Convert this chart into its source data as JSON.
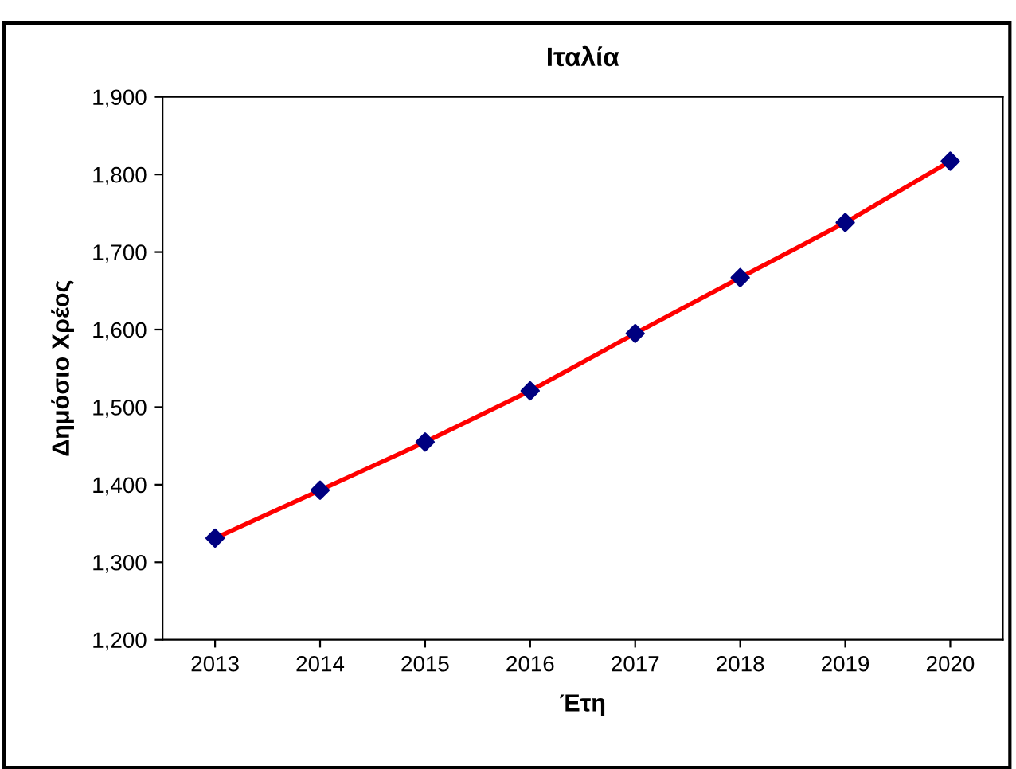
{
  "chart_data": {
    "type": "line",
    "title": "Ιταλία",
    "xlabel": "Έτη",
    "ylabel": "Δημόσιο Χρέος",
    "categories": [
      "2013",
      "2014",
      "2015",
      "2016",
      "2017",
      "2018",
      "2019",
      "2020"
    ],
    "series": [
      {
        "color": "#ff0000",
        "colors": [
          "#000080",
          "#000080",
          "#000080",
          "#000080",
          "#000080",
          "#000080",
          "#000080",
          "#000080"
        ],
        "values": [
          1331,
          1393,
          1455,
          1521,
          1595,
          1667,
          1738,
          1817
        ]
      }
    ],
    "marker": "diamond",
    "line_style": "solid",
    "grid": false,
    "legend": false,
    "ylim": [
      1200,
      1900
    ],
    "yticks": [
      {
        "value": 1200,
        "label": "1,200"
      },
      {
        "value": 1300,
        "label": "1,300"
      },
      {
        "value": 1400,
        "label": "1,400"
      },
      {
        "value": 1500,
        "label": "1,500"
      },
      {
        "value": 1600,
        "label": "1,600"
      },
      {
        "value": 1700,
        "label": "1,700"
      },
      {
        "value": 1800,
        "label": "1,800"
      },
      {
        "value": 1900,
        "label": "1,900"
      }
    ]
  }
}
